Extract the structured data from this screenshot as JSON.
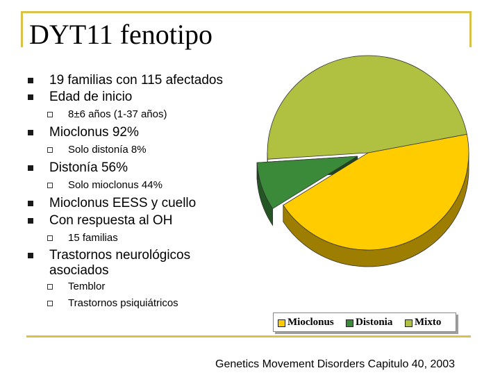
{
  "slide": {
    "title": "DYT11 fenotipo",
    "bullets": [
      {
        "level": 1,
        "text": "19 familias con 115 afectados"
      },
      {
        "level": 1,
        "text": "Edad de inicio"
      },
      {
        "level": 2,
        "text": "8±6 años (1-37 años)"
      },
      {
        "level": 1,
        "text": "Mioclonus 92%"
      },
      {
        "level": 2,
        "text": "Solo distonía 8%"
      },
      {
        "level": 1,
        "text": "Distonía  56%"
      },
      {
        "level": 2,
        "text": "Solo mioclonus  44%"
      },
      {
        "level": 1,
        "text": "Mioclonus EESS y cuello"
      },
      {
        "level": 1,
        "text": "Con respuesta al OH"
      },
      {
        "level": 2,
        "text": "15 familias"
      },
      {
        "level": 1,
        "text": "Trastornos neurológicos"
      },
      {
        "level": 1,
        "text": "asociados"
      },
      {
        "level": 2,
        "text": "Temblor"
      },
      {
        "level": 2,
        "text": "Trastornos psiquiátricos"
      }
    ],
    "footer": "Genetics Movement Disorders Capitulo 40, 2003",
    "colors": {
      "frame": "#d9c24a"
    }
  },
  "chart_data": {
    "type": "pie",
    "style": "3d exploded pie",
    "legend_position": "bottom",
    "labels": [
      "Mioclonus",
      "Distonia",
      "Mixto"
    ],
    "values": [
      44,
      8,
      48
    ],
    "unit": "%",
    "colors": [
      "#ffcc00",
      "#3a8a3a",
      "#b0c040"
    ]
  }
}
